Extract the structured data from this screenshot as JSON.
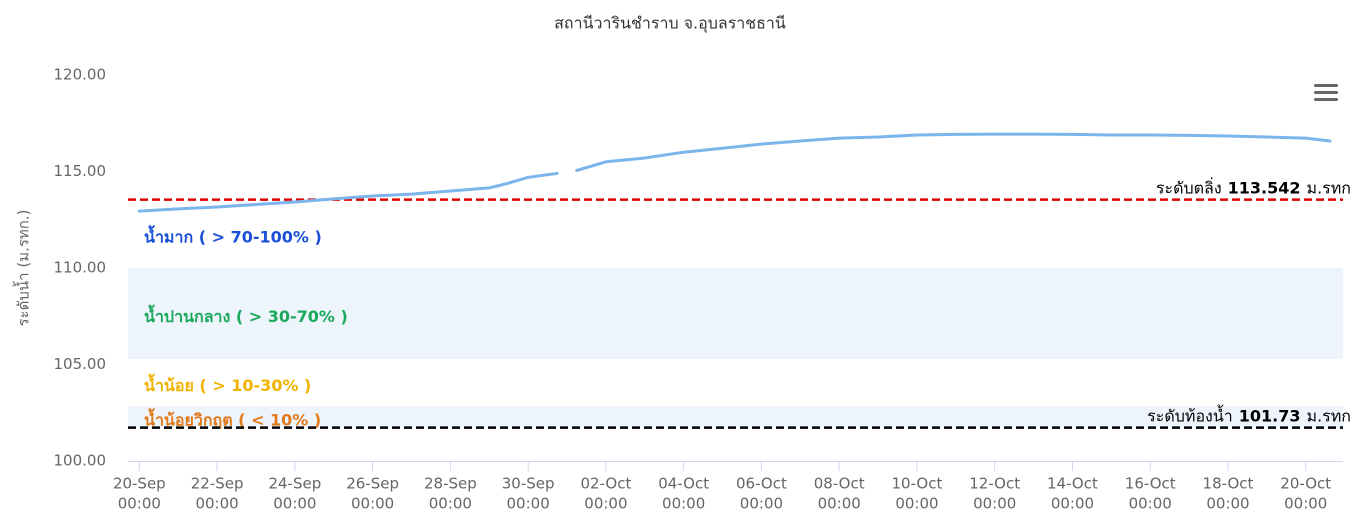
{
  "chart_data": {
    "type": "line",
    "title": "สถานีวารินชำราบ จ.อุบลราชธานี",
    "y_label": "ระดับน้ำ (ม.รทก.)",
    "xlim": [
      "09-19 17:00",
      "10-20 23:00"
    ],
    "ylim": [
      100,
      120
    ],
    "yticks": [
      {
        "value": 100,
        "label": "100.00"
      },
      {
        "value": 105,
        "label": "105.00"
      },
      {
        "value": 110,
        "label": "110.00"
      },
      {
        "value": 115,
        "label": "115.00"
      },
      {
        "value": 120,
        "label": "120.00"
      }
    ],
    "xticks": [
      {
        "value": "09-20 00:00",
        "label": [
          "20-Sep",
          "00:00"
        ]
      },
      {
        "value": "09-22 00:00",
        "label": [
          "22-Sep",
          "00:00"
        ]
      },
      {
        "value": "09-24 00:00",
        "label": [
          "24-Sep",
          "00:00"
        ]
      },
      {
        "value": "09-26 00:00",
        "label": [
          "26-Sep",
          "00:00"
        ]
      },
      {
        "value": "09-28 00:00",
        "label": [
          "28-Sep",
          "00:00"
        ]
      },
      {
        "value": "09-30 00:00",
        "label": [
          "30-Sep",
          "00:00"
        ]
      },
      {
        "value": "10-02 00:00",
        "label": [
          "02-Oct",
          "00:00"
        ]
      },
      {
        "value": "10-04 00:00",
        "label": [
          "04-Oct",
          "00:00"
        ]
      },
      {
        "value": "10-06 00:00",
        "label": [
          "06-Oct",
          "00:00"
        ]
      },
      {
        "value": "10-08 00:00",
        "label": [
          "08-Oct",
          "00:00"
        ]
      },
      {
        "value": "10-10 00:00",
        "label": [
          "10-Oct",
          "00:00"
        ]
      },
      {
        "value": "10-12 00:00",
        "label": [
          "12-Oct",
          "00:00"
        ]
      },
      {
        "value": "10-14 00:00",
        "label": [
          "14-Oct",
          "00:00"
        ]
      },
      {
        "value": "10-16 00:00",
        "label": [
          "16-Oct",
          "00:00"
        ]
      },
      {
        "value": "10-18 00:00",
        "label": [
          "18-Oct",
          "00:00"
        ]
      },
      {
        "value": "10-20 00:00",
        "label": [
          "20-Oct",
          "00:00"
        ]
      }
    ],
    "zones": [
      {
        "label": "น้ำมาก ( > 70-100% )",
        "label_color": "#1a4fd6",
        "from": 110,
        "to": 113.542
      },
      {
        "label": "น้ำปานกลาง ( > 30-70% )",
        "label_color": "#1aa85a",
        "from": 105.28,
        "to": 110,
        "fill": "#edf4fb"
      },
      {
        "label": "น้ำน้อย ( > 10-30% )",
        "label_color": "#f0b400",
        "from": 102.85,
        "to": 105.28
      },
      {
        "label": "น้ำน้อยวิกฤต ( < 10% )",
        "label_color": "#e07a1a",
        "from": 101.73,
        "to": 102.85,
        "fill": "#edf4fb"
      }
    ],
    "plot_lines": [
      {
        "name": "ระดับตลิ่ง",
        "value": 113.542,
        "unit": "ม.รทก",
        "color": "#e00000"
      },
      {
        "name": "ระดับท้องน้ำ",
        "value": 101.73,
        "unit": "ม.รทก",
        "color": "#000000"
      }
    ],
    "x": [
      "09-20 00:00",
      "09-21 00:00",
      "09-22 00:00",
      "09-23 00:00",
      "09-24 00:00",
      "09-25 00:00",
      "09-26 00:00",
      "09-27 00:00",
      "09-28 00:00",
      "09-29 00:00",
      "09-29 12:00",
      "09-30 00:00",
      "09-30 18:00",
      "10-01 00:00",
      "10-01 06:00",
      "10-02 00:00",
      "10-03 00:00",
      "10-04 00:00",
      "10-05 00:00",
      "10-06 00:00",
      "10-07 00:00",
      "10-08 00:00",
      "10-09 00:00",
      "10-10 00:00",
      "10-11 00:00",
      "10-12 00:00",
      "10-13 00:00",
      "10-14 00:00",
      "10-15 00:00",
      "10-16 00:00",
      "10-17 00:00",
      "10-18 00:00",
      "10-19 00:00",
      "10-20 00:00",
      "10-20 15:00"
    ],
    "series": [
      {
        "name": "ระดับน้ำ",
        "color": "#7cb5ec",
        "values": [
          112.95,
          113.06,
          113.16,
          113.29,
          113.42,
          113.58,
          113.73,
          113.83,
          113.99,
          114.15,
          114.4,
          114.7,
          114.9,
          null,
          115.05,
          115.5,
          115.7,
          116.0,
          116.2,
          116.42,
          116.58,
          116.73,
          116.79,
          116.89,
          116.92,
          116.94,
          116.94,
          116.92,
          116.89,
          116.89,
          116.87,
          116.84,
          116.79,
          116.73,
          116.58
        ]
      }
    ]
  }
}
